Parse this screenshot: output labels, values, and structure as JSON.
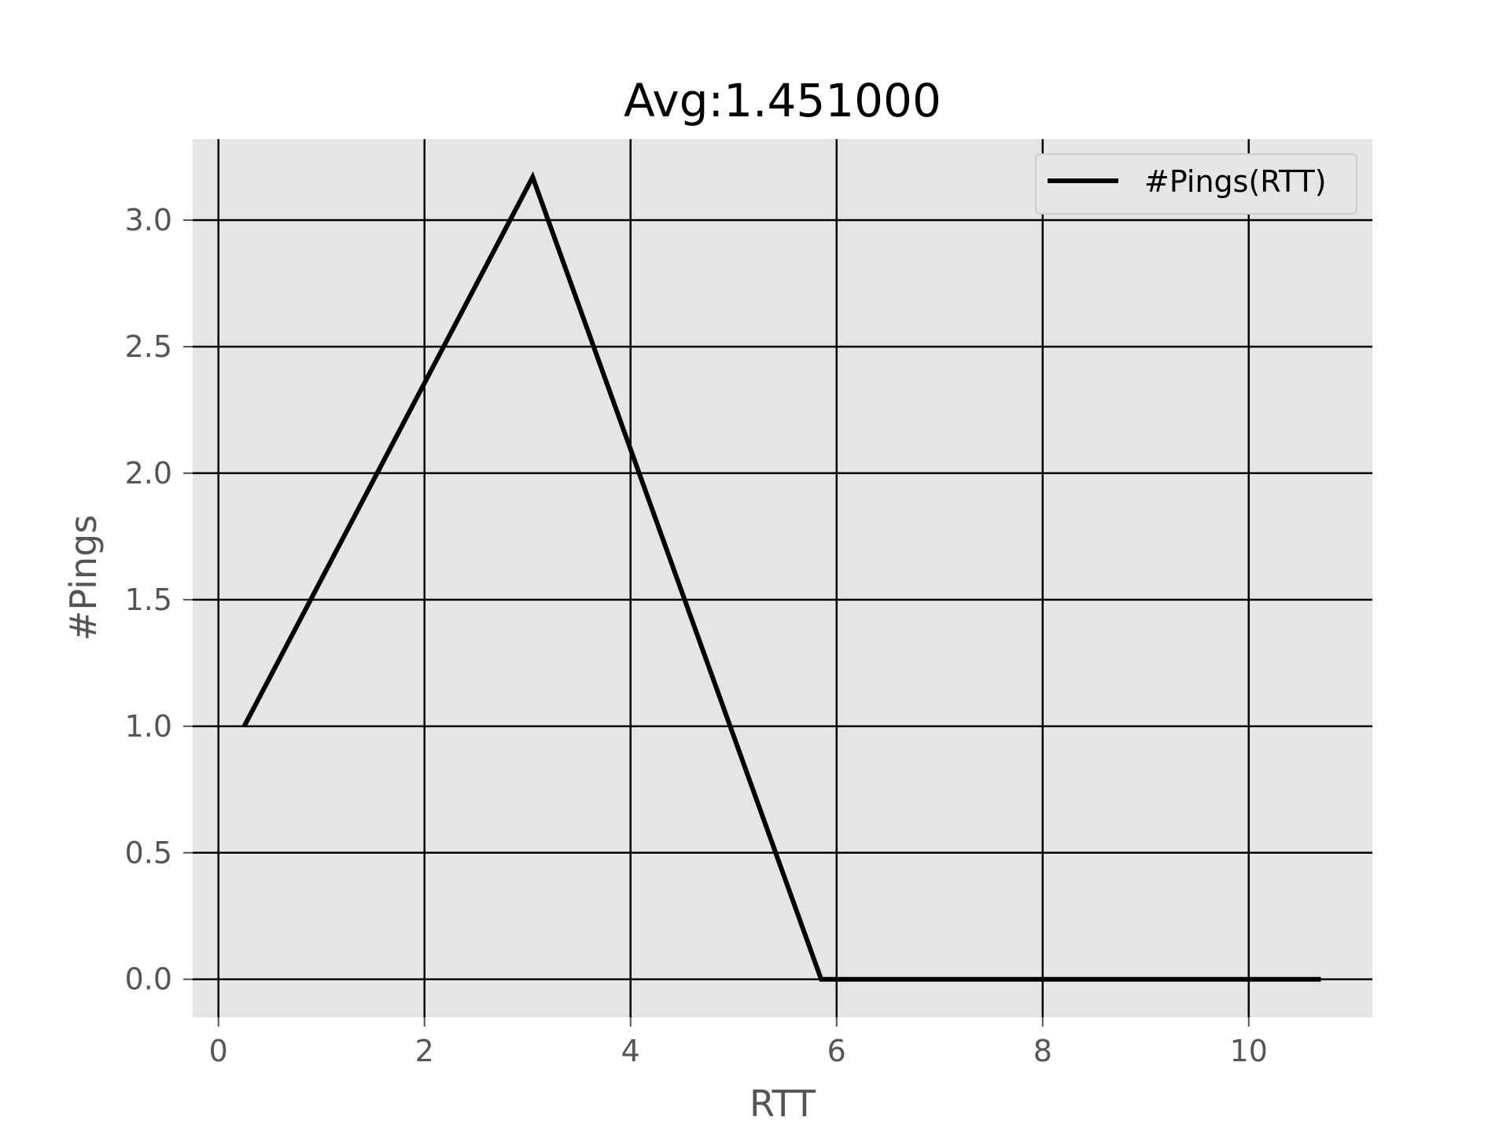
{
  "chart_data": {
    "type": "line",
    "title": "Avg:1.451000",
    "xlabel": "RTT",
    "ylabel": "#Pings",
    "xlim": [
      -0.25,
      11.2
    ],
    "ylim": [
      -0.15,
      3.32
    ],
    "xticks": [
      0,
      2,
      4,
      6,
      8,
      10
    ],
    "xtick_labels": [
      "0",
      "2",
      "4",
      "6",
      "8",
      "10"
    ],
    "yticks": [
      0.0,
      0.5,
      1.0,
      1.5,
      2.0,
      2.5,
      3.0
    ],
    "ytick_labels": [
      "0.0",
      "0.5",
      "1.0",
      "1.5",
      "2.0",
      "2.5",
      "3.0"
    ],
    "grid": true,
    "legend_position": "top-right",
    "background_color": "#e5e5e5",
    "grid_color": "#000000",
    "series": [
      {
        "name": "#Pings(RTT)",
        "color": "#000000",
        "x": [
          0.25,
          3.05,
          5.85,
          10.7
        ],
        "y": [
          1.0,
          3.17,
          0.0,
          0.0
        ]
      }
    ]
  }
}
